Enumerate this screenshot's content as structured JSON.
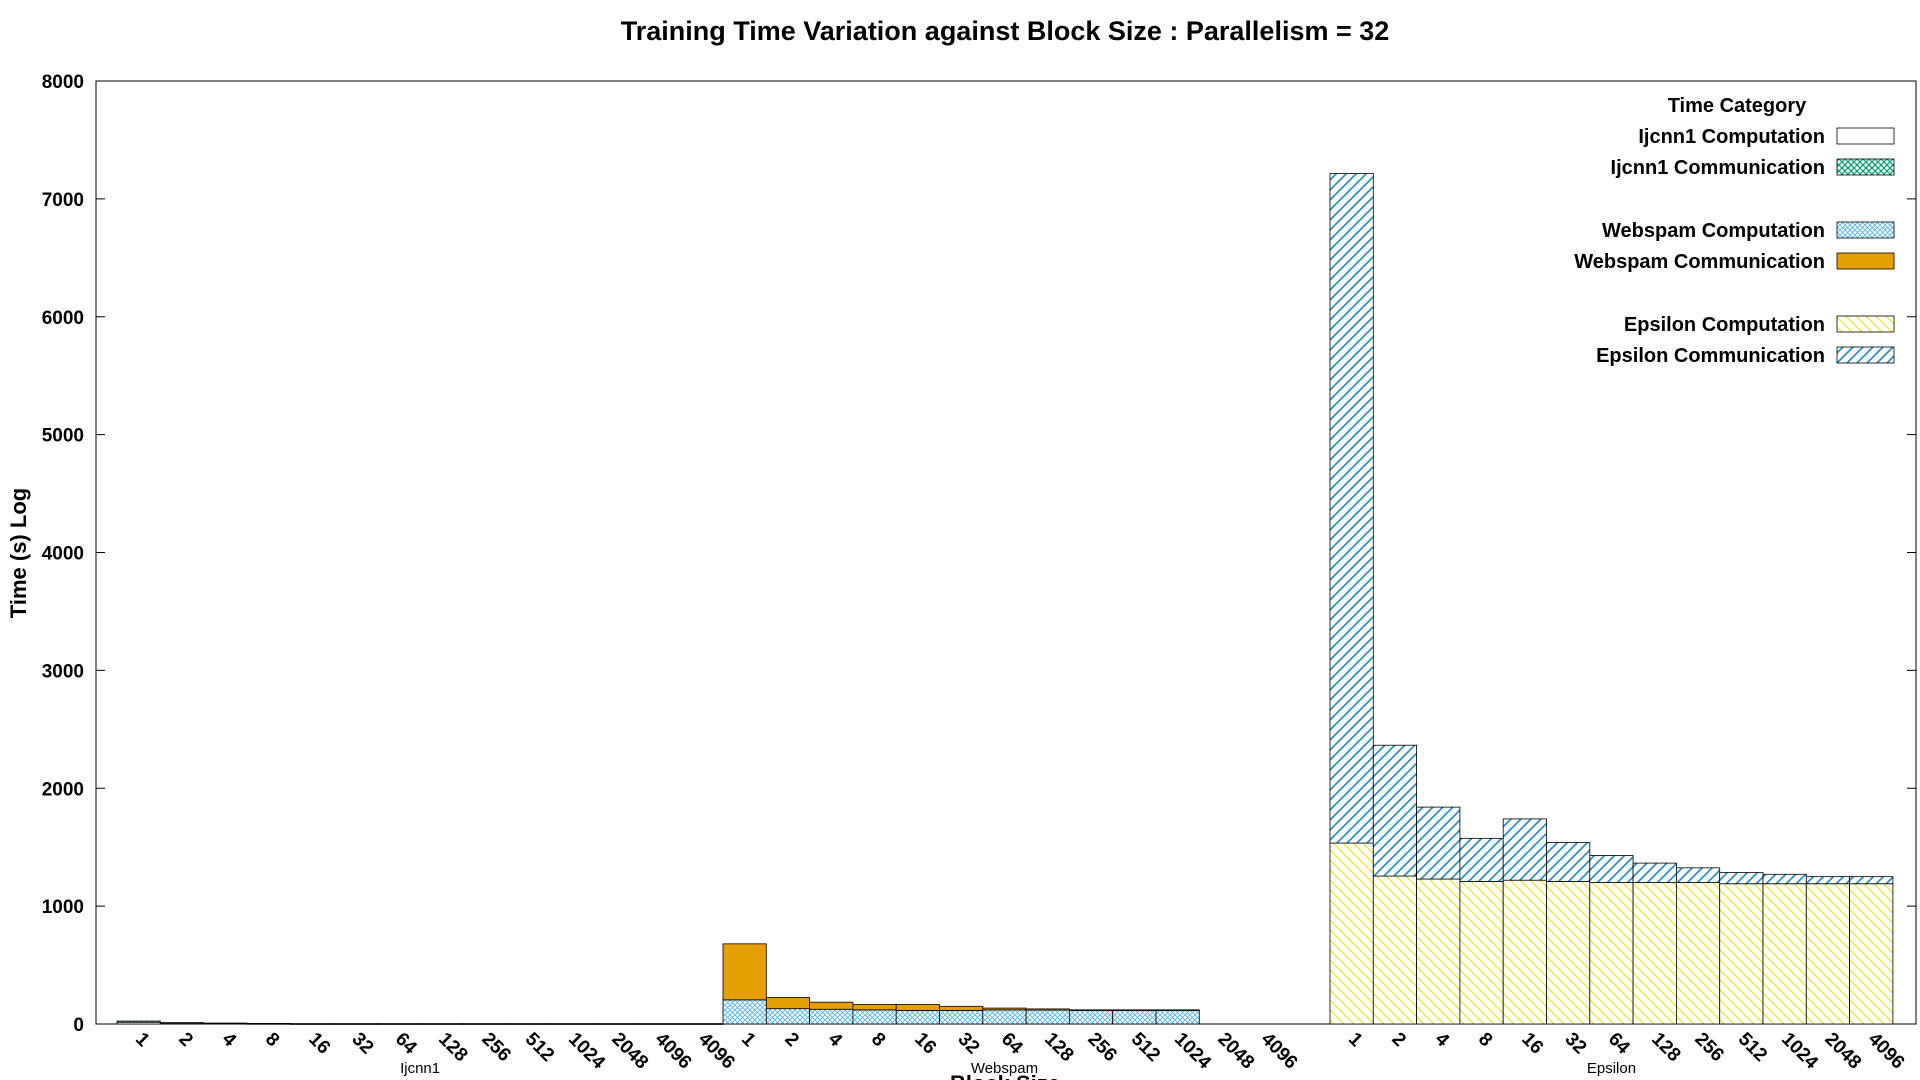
{
  "chart_data": {
    "type": "bar",
    "title": "Training Time Variation against Block Size : Parallelism = 32",
    "xlabel": "Block Size",
    "ylabel": "Time (s) Log",
    "ylim": [
      0,
      8000
    ],
    "yticks": [
      0,
      1000,
      2000,
      3000,
      4000,
      5000,
      6000,
      7000,
      8000
    ],
    "legend_title": "Time Category",
    "legend_position": "top-right",
    "grid": false,
    "groups": [
      {
        "name": "Ijcnn1",
        "categories": [
          "1",
          "2",
          "4",
          "8",
          "16",
          "32",
          "64",
          "128",
          "256",
          "512",
          "1024",
          "2048",
          "4096",
          "4096"
        ],
        "series": [
          {
            "name": "Ijcnn1 Computation",
            "values": [
              15,
              8,
              5,
              3,
              2,
              2,
              2,
              2,
              2,
              2,
              2,
              2,
              2,
              2
            ]
          },
          {
            "name": "Ijcnn1 Communication",
            "values": [
              10,
              4,
              3,
              2,
              1,
              1,
              1,
              1,
              1,
              1,
              1,
              1,
              1,
              1
            ]
          }
        ]
      },
      {
        "name": "Webspam",
        "categories": [
          "1",
          "2",
          "4",
          "8",
          "16",
          "32",
          "64",
          "128",
          "256",
          "512",
          "1024",
          "2048",
          "4096"
        ],
        "series": [
          {
            "name": "Webspam Computation",
            "values": [
              205,
              130,
              125,
              120,
              115,
              115,
              120,
              118,
              115,
              115,
              115,
              0,
              0
            ]
          },
          {
            "name": "Webspam Communication",
            "values": [
              475,
              95,
              60,
              45,
              50,
              35,
              15,
              10,
              5,
              5,
              5,
              0,
              0
            ]
          }
        ]
      },
      {
        "name": "Epsilon",
        "categories": [
          "1",
          "2",
          "4",
          "8",
          "16",
          "32",
          "64",
          "128",
          "256",
          "512",
          "1024",
          "2048",
          "4096"
        ],
        "series": [
          {
            "name": "Epsilon Computation",
            "values": [
              1535,
              1255,
              1230,
              1210,
              1220,
              1210,
              1200,
              1200,
              1200,
              1190,
              1190,
              1190,
              1190
            ]
          },
          {
            "name": "Epsilon Communication",
            "values": [
              5680,
              1110,
              610,
              365,
              520,
              330,
              230,
              165,
              125,
              95,
              80,
              60,
              60
            ]
          }
        ]
      }
    ]
  },
  "colors": {
    "Ijcnn1 Computation": "#ffffff",
    "Ijcnn1 Communication": "#009e73",
    "Webspam Computation": "#56b4e9",
    "Webspam Communication": "#e69f00",
    "Epsilon Computation": "#f0e442",
    "Epsilon Communication": "#0072b2"
  }
}
